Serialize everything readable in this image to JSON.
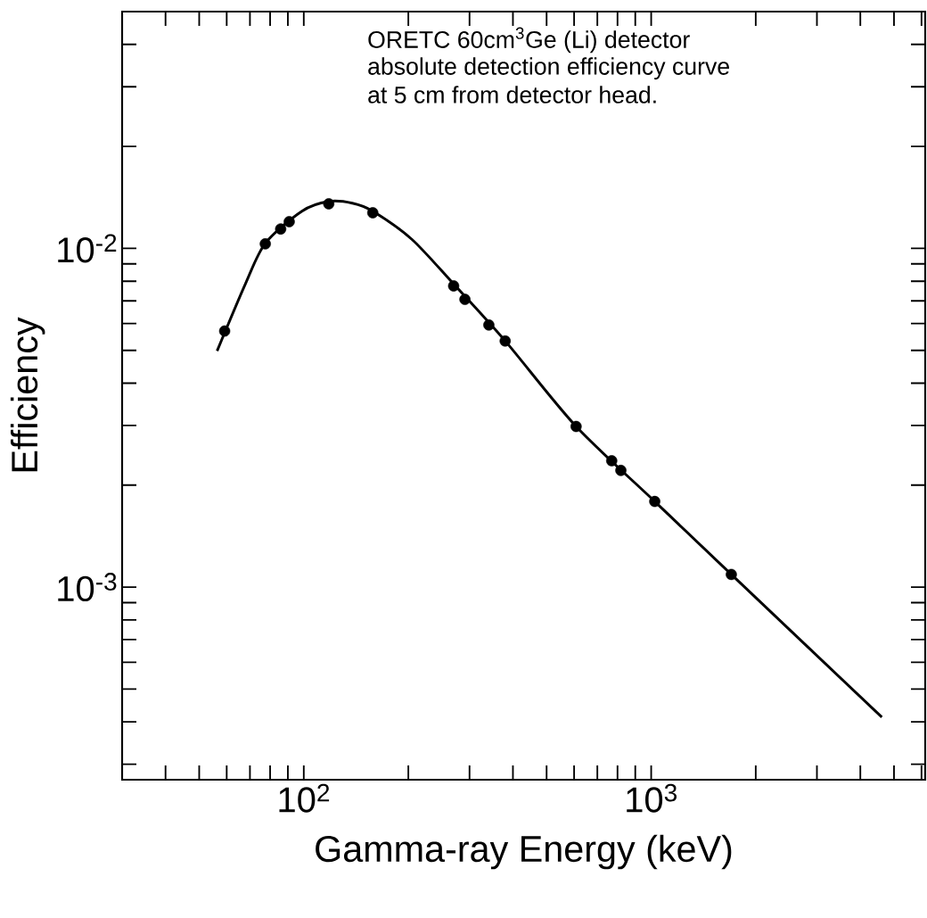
{
  "chart_data": {
    "type": "scatter",
    "xlabel": "Gamma-ray Energy (keV)",
    "ylabel": "Efficiency",
    "log": "xy",
    "annotations": [
      "ORETC 60cm$^{3}$Ge (Li) detector",
      "absolute detection efficiency  curve",
      "at  5 cm from detector head."
    ],
    "xlim": [
      30,
      6150
    ],
    "ylim": [
      0.00027,
      0.05
    ],
    "xticks": [
      {
        "value": 40,
        "label": null
      },
      {
        "value": 50,
        "label": null
      },
      {
        "value": 60,
        "label": null
      },
      {
        "value": 70,
        "label": null
      },
      {
        "value": 80,
        "label": null
      },
      {
        "value": 90,
        "label": null
      },
      {
        "value": 100,
        "label": "10$^{2}$"
      },
      {
        "value": 200,
        "label": null
      },
      {
        "value": 300,
        "label": null
      },
      {
        "value": 400,
        "label": null
      },
      {
        "value": 500,
        "label": null
      },
      {
        "value": 600,
        "label": null
      },
      {
        "value": 700,
        "label": null
      },
      {
        "value": 800,
        "label": null
      },
      {
        "value": 900,
        "label": null
      },
      {
        "value": 1000,
        "label": "10$^{3}$"
      },
      {
        "value": 2000,
        "label": null
      },
      {
        "value": 3000,
        "label": null
      },
      {
        "value": 4000,
        "label": null
      },
      {
        "value": 5000,
        "label": null
      },
      {
        "value": 6000,
        "label": null
      }
    ],
    "yticks": [
      {
        "value": 0.0003,
        "label": null
      },
      {
        "value": 0.0004,
        "label": null
      },
      {
        "value": 0.0005,
        "label": null
      },
      {
        "value": 0.0006,
        "label": null
      },
      {
        "value": 0.0007,
        "label": null
      },
      {
        "value": 0.0008,
        "label": null
      },
      {
        "value": 0.0009,
        "label": null
      },
      {
        "value": 0.001,
        "label": "10$^{-3}$"
      },
      {
        "value": 0.002,
        "label": null
      },
      {
        "value": 0.003,
        "label": null
      },
      {
        "value": 0.004,
        "label": null
      },
      {
        "value": 0.005,
        "label": null
      },
      {
        "value": 0.006,
        "label": null
      },
      {
        "value": 0.007,
        "label": null
      },
      {
        "value": 0.008,
        "label": null
      },
      {
        "value": 0.009,
        "label": null
      },
      {
        "value": 0.01,
        "label": "10$^{-2}$"
      },
      {
        "value": 0.02,
        "label": null
      },
      {
        "value": 0.03,
        "label": null
      },
      {
        "value": 0.04,
        "label": null
      },
      {
        "value": 0.05,
        "label": null
      }
    ],
    "series": [
      {
        "type": "line",
        "color": "#000000",
        "marker": "none",
        "line_style": "solid",
        "x": [
          56.3,
          67.9,
          77.6,
          98.8,
          118,
          138,
          158,
          205,
          270,
          380,
          608,
          1024,
          1701,
          4613
        ],
        "values": [
          0.00498,
          0.00785,
          0.01037,
          0.01288,
          0.01376,
          0.0136,
          0.01288,
          0.01062,
          0.00785,
          0.00533,
          0.00298,
          0.00179,
          0.00109,
          0.000413
        ]
      },
      {
        "color": "#000000",
        "marker": "circle",
        "x": [
          59.2,
          77.5,
          85.8,
          90.8,
          118,
          158,
          270,
          291,
          341,
          380,
          608,
          770,
          818,
          1024,
          1701
        ],
        "values": [
          0.0057,
          0.01031,
          0.01141,
          0.01199,
          0.01354,
          0.01274,
          0.00775,
          0.00707,
          0.00594,
          0.00533,
          0.00298,
          0.00236,
          0.00221,
          0.00179,
          0.00109
        ]
      }
    ]
  }
}
